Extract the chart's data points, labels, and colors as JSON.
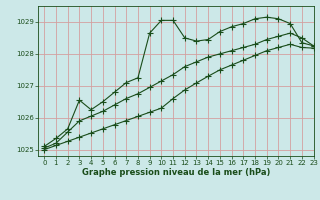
{
  "title": "Graphe pression niveau de la mer (hPa)",
  "background_color": "#cce8e8",
  "grid_color": "#d4a0a0",
  "line_color": "#1a4d1a",
  "ylim": [
    1024.8,
    1029.5
  ],
  "xlim": [
    -0.5,
    23
  ],
  "yticks": [
    1025,
    1026,
    1027,
    1028,
    1029
  ],
  "xticks": [
    0,
    1,
    2,
    3,
    4,
    5,
    6,
    7,
    8,
    9,
    10,
    11,
    12,
    13,
    14,
    15,
    16,
    17,
    18,
    19,
    20,
    21,
    22,
    23
  ],
  "series1_x": [
    0,
    1,
    2,
    3,
    4,
    5,
    6,
    7,
    8,
    9,
    10,
    11,
    12,
    13,
    14,
    15,
    16,
    17,
    18,
    19,
    20,
    21,
    22,
    23
  ],
  "series1_y": [
    1025.1,
    1025.35,
    1025.65,
    1026.55,
    1026.25,
    1026.5,
    1026.8,
    1027.1,
    1027.25,
    1028.65,
    1029.05,
    1029.05,
    1028.5,
    1028.4,
    1028.45,
    1028.7,
    1028.85,
    1028.95,
    1029.1,
    1029.15,
    1029.1,
    1028.95,
    1028.35,
    1028.25
  ],
  "series2_x": [
    0,
    1,
    2,
    3,
    4,
    5,
    6,
    7,
    8,
    9,
    10,
    11,
    12,
    13,
    14,
    15,
    16,
    17,
    18,
    19,
    20,
    21,
    22,
    23
  ],
  "series2_y": [
    1025.05,
    1025.2,
    1025.55,
    1025.9,
    1026.05,
    1026.2,
    1026.4,
    1026.6,
    1026.75,
    1026.95,
    1027.15,
    1027.35,
    1027.6,
    1027.75,
    1027.9,
    1028.0,
    1028.1,
    1028.2,
    1028.3,
    1028.45,
    1028.55,
    1028.65,
    1028.5,
    1028.25
  ],
  "series3_x": [
    0,
    1,
    2,
    3,
    4,
    5,
    6,
    7,
    8,
    9,
    10,
    11,
    12,
    13,
    14,
    15,
    16,
    17,
    18,
    19,
    20,
    21,
    22,
    23
  ],
  "series3_y": [
    1025.0,
    1025.13,
    1025.26,
    1025.39,
    1025.52,
    1025.65,
    1025.78,
    1025.91,
    1026.04,
    1026.17,
    1026.3,
    1026.6,
    1026.87,
    1027.09,
    1027.3,
    1027.5,
    1027.65,
    1027.8,
    1027.95,
    1028.1,
    1028.2,
    1028.3,
    1028.2,
    1028.18
  ],
  "title_fontsize": 6.0,
  "tick_fontsize": 5.0
}
